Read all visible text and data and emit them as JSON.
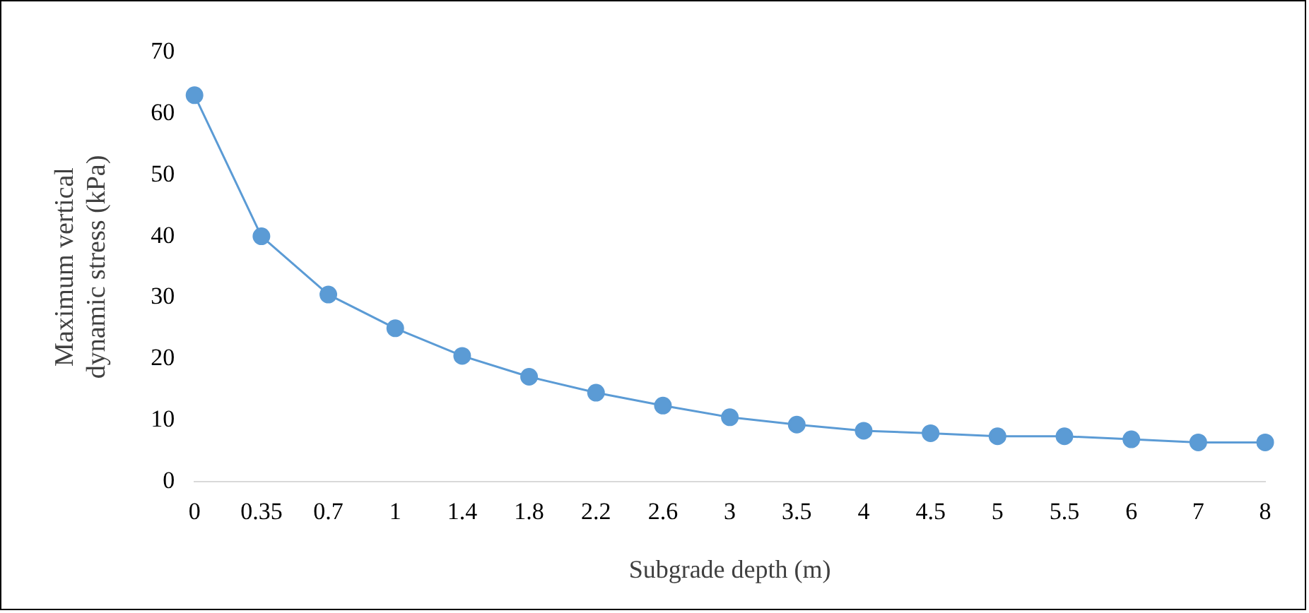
{
  "chart_data": {
    "type": "line",
    "xlabel": "Subgrade depth (m)",
    "ylabel": "Maximum vertical dynamic stress (kPa)",
    "categories": [
      "0",
      "0.35",
      "0.7",
      "1",
      "1.4",
      "1.8",
      "2.2",
      "2.6",
      "3",
      "3.5",
      "4",
      "4.5",
      "5",
      "5.5",
      "6",
      "7",
      "8"
    ],
    "series": [
      {
        "color": "#5b9bd5",
        "values": [
          63,
          40,
          30.5,
          25,
          20.5,
          17.1,
          14.5,
          12.4,
          10.5,
          9.3,
          8.3,
          7.9,
          7.4,
          7.4,
          6.9,
          6.4,
          6.4
        ]
      }
    ],
    "ylim": [
      0,
      70
    ],
    "yticks": [
      0,
      10,
      20,
      30,
      40,
      50,
      60,
      70
    ],
    "grid": false,
    "legend": false,
    "marker": "circle",
    "line_style": "solid"
  }
}
